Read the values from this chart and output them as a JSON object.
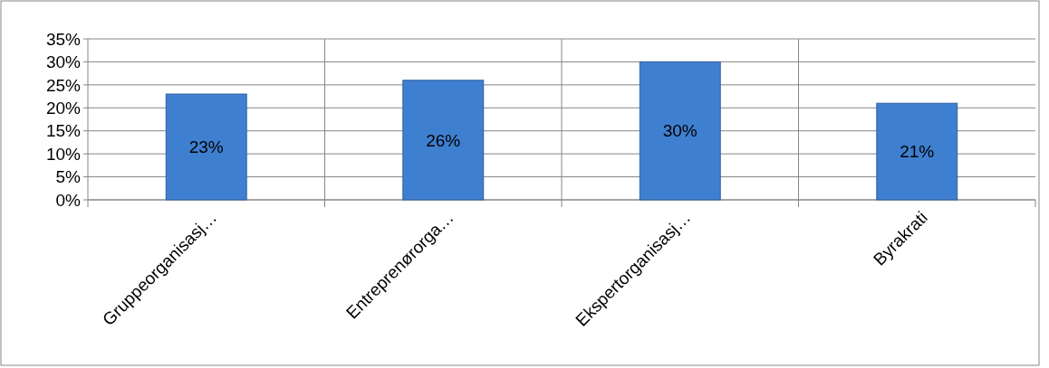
{
  "chart_data": {
    "type": "bar",
    "categories": [
      "Gruppeorganisasj…",
      "Entreprenørorga…",
      "Ekspertorganisasj…",
      "Byrakrati"
    ],
    "values": [
      23,
      26,
      30,
      21
    ],
    "color": "#3f7fcf",
    "ylim": [
      0,
      35
    ],
    "yticks": [
      {
        "value": 0,
        "label": "0%"
      },
      {
        "value": 5,
        "label": "5%"
      },
      {
        "value": 10,
        "label": "10%"
      },
      {
        "value": 15,
        "label": "15%"
      },
      {
        "value": 20,
        "label": "20%"
      },
      {
        "value": 25,
        "label": "25%"
      },
      {
        "value": 30,
        "label": "30%"
      },
      {
        "value": 35,
        "label": "35%"
      }
    ],
    "grid": true,
    "value_labels": [
      "23%",
      "26%",
      "30%",
      "21%"
    ]
  }
}
